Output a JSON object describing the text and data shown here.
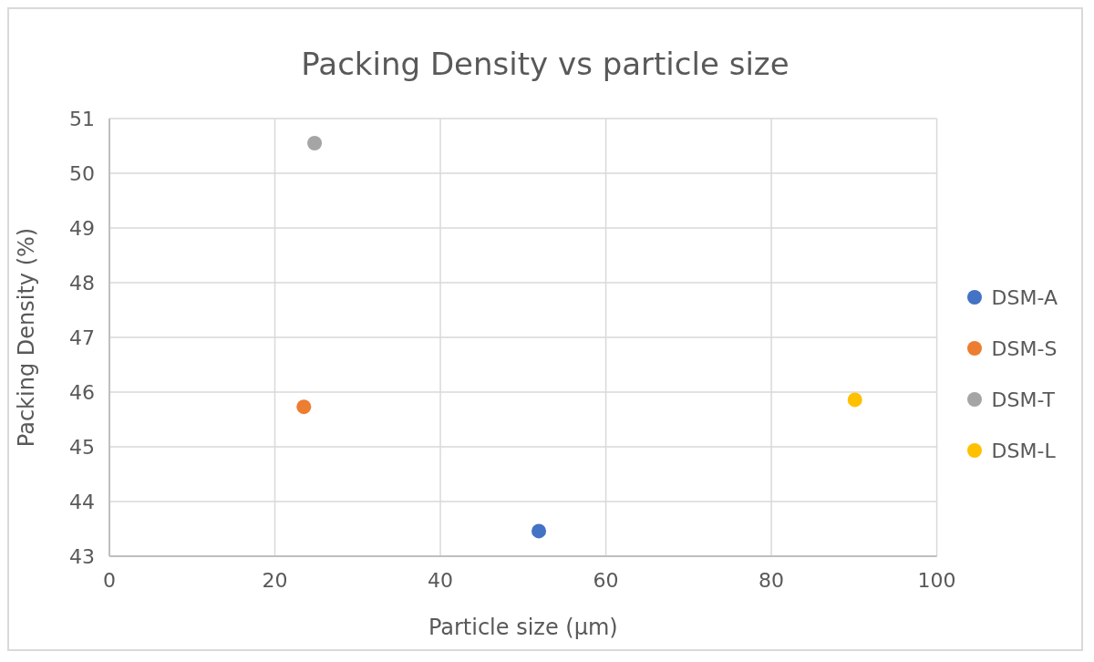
{
  "chart_data": {
    "type": "scatter",
    "title": "Packing Density vs particle size",
    "xlabel": "Particle size (µm)",
    "ylabel": "Packing Density (%)",
    "xlim": [
      0,
      100
    ],
    "xticks": [
      0,
      20,
      40,
      60,
      80,
      100
    ],
    "ylim": [
      43,
      51
    ],
    "yticks": [
      43,
      44,
      45,
      46,
      47,
      48,
      49,
      50,
      51
    ],
    "grid": true,
    "legend": "right",
    "marker": "circle",
    "series": [
      {
        "name": "DSM-A",
        "color": "#4472c4",
        "x": [
          51.9
        ],
        "values": [
          43.46
        ]
      },
      {
        "name": "DSM-S",
        "color": "#ed7d31",
        "x": [
          23.5
        ],
        "values": [
          45.73
        ]
      },
      {
        "name": "DSM-T",
        "color": "#a5a5a5",
        "x": [
          24.8
        ],
        "values": [
          50.55
        ]
      },
      {
        "name": "DSM-L",
        "color": "#ffc000",
        "x": [
          90.1
        ],
        "values": [
          45.86
        ]
      }
    ]
  }
}
